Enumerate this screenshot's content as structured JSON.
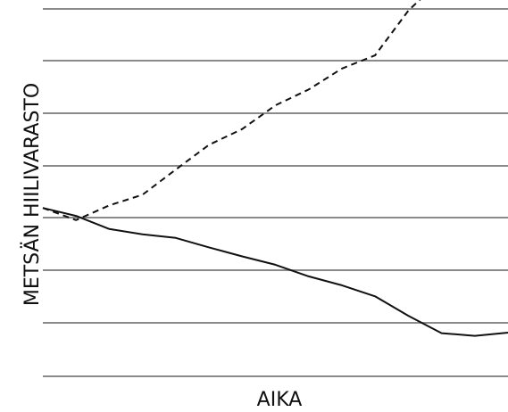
{
  "chart_data": {
    "type": "line",
    "title": "",
    "xlabel": "AIKA",
    "ylabel": "METSÄN HIILIVARASTO",
    "grid": true,
    "legend": "none",
    "xlim": [
      0,
      14
    ],
    "ylim": [
      0,
      7.5
    ],
    "colors": {
      "grid": "#8a8a8a",
      "series": "#111111"
    },
    "series": [
      {
        "line_style": "solid",
        "x": [
          0,
          1,
          2,
          3,
          4,
          5,
          6,
          7,
          8,
          9,
          10,
          11,
          12,
          13,
          14
        ],
        "y": [
          3.2,
          3.05,
          2.8,
          2.7,
          2.63,
          2.45,
          2.28,
          2.12,
          1.9,
          1.73,
          1.52,
          1.15,
          0.82,
          0.77,
          0.83
        ]
      },
      {
        "line_style": "dashed",
        "x": [
          0,
          1,
          2,
          3,
          4,
          5,
          6,
          7,
          8,
          9,
          10,
          11,
          12,
          13,
          14
        ],
        "y": [
          3.2,
          2.97,
          3.25,
          3.45,
          3.93,
          4.4,
          4.7,
          5.15,
          5.45,
          5.85,
          6.1,
          6.95,
          7.55,
          7.95,
          7.75
        ]
      }
    ]
  }
}
